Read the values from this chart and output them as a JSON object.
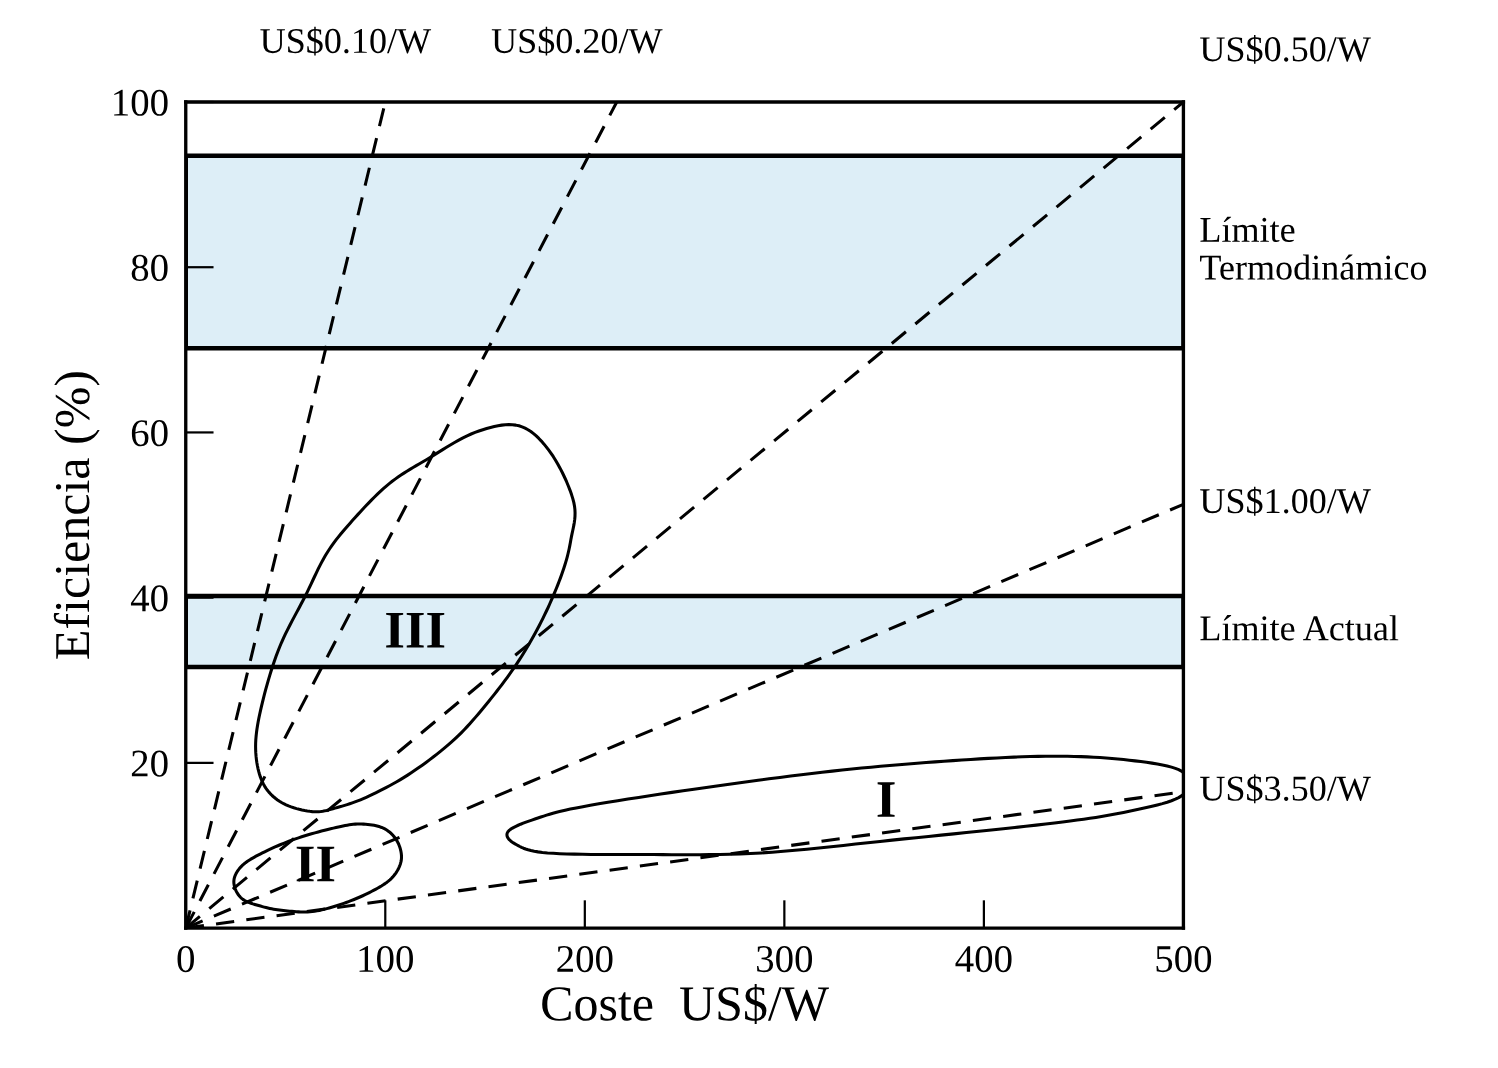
{
  "chart_data": {
    "type": "line",
    "xlabel": "Coste  US$/W",
    "ylabel": "Eficiencia (%)",
    "xlim": [
      0,
      500
    ],
    "ylim": [
      0,
      100
    ],
    "xticks": [
      0,
      100,
      200,
      300,
      400,
      500
    ],
    "yticks": [
      20,
      40,
      60,
      80,
      100
    ],
    "grid": false,
    "legend": false,
    "series": [
      {
        "name": "US$0.10/W",
        "color": "#000000",
        "line_style": "dashed",
        "x": [
          0,
          100
        ],
        "values": [
          0,
          100
        ]
      },
      {
        "name": "US$0.20/W",
        "color": "#000000",
        "line_style": "dashed",
        "x": [
          0,
          216
        ],
        "values": [
          0,
          100
        ]
      },
      {
        "name": "US$0.50/W",
        "color": "#000000",
        "line_style": "dashed",
        "x": [
          0,
          500
        ],
        "values": [
          0,
          100
        ]
      },
      {
        "name": "US$1.00/W",
        "color": "#000000",
        "line_style": "dashed",
        "x": [
          0,
          500
        ],
        "values": [
          0,
          51.3
        ]
      },
      {
        "name": "US$3.50/W",
        "color": "#000000",
        "line_style": "dashed",
        "x": [
          0,
          500
        ],
        "values": [
          0,
          16.5
        ]
      }
    ],
    "annotations": [
      "III",
      "II",
      "I"
    ],
    "bands": [
      {
        "axis": "y",
        "from": 70.2,
        "to": 93.5,
        "label": "Límite\nTermodinámico",
        "color": "#ddeef7"
      },
      {
        "axis": "y",
        "from": 31.6,
        "to": 40.2,
        "label": "Límite Actual",
        "color": "#ddeef7"
      }
    ]
  }
}
